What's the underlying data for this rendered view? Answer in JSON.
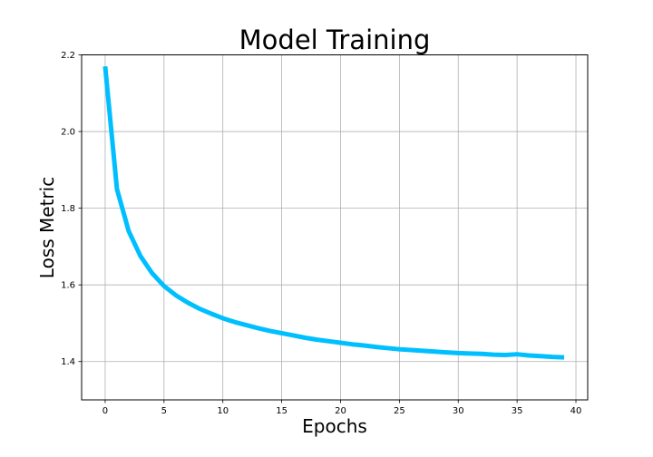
{
  "chart_data": {
    "type": "line",
    "title": "Model Training",
    "xlabel": "Epochs",
    "ylabel": "Loss Metric",
    "xlim": [
      -2,
      41
    ],
    "ylim": [
      1.3,
      2.2
    ],
    "xticks": [
      0,
      5,
      10,
      15,
      20,
      25,
      30,
      35,
      40
    ],
    "yticks": [
      1.4,
      1.6,
      1.8,
      2.0,
      2.2
    ],
    "ytick_labels": [
      "1.4",
      "1.6",
      "1.8",
      "2.0",
      "2.2"
    ],
    "grid": true,
    "series": [
      {
        "color": "#00bfff",
        "x": [
          0,
          1,
          2,
          3,
          4,
          5,
          6,
          7,
          8,
          9,
          10,
          11,
          12,
          13,
          14,
          15,
          16,
          17,
          18,
          19,
          20,
          21,
          22,
          23,
          24,
          25,
          26,
          27,
          28,
          29,
          30,
          31,
          32,
          33,
          34,
          35,
          36,
          37,
          38,
          39
        ],
        "y": [
          2.17,
          1.85,
          1.74,
          1.675,
          1.63,
          1.597,
          1.573,
          1.554,
          1.538,
          1.525,
          1.513,
          1.503,
          1.495,
          1.487,
          1.48,
          1.474,
          1.468,
          1.462,
          1.457,
          1.453,
          1.449,
          1.445,
          1.442,
          1.438,
          1.435,
          1.432,
          1.43,
          1.428,
          1.426,
          1.424,
          1.422,
          1.421,
          1.42,
          1.418,
          1.417,
          1.419,
          1.416,
          1.414,
          1.412,
          1.411
        ]
      }
    ]
  }
}
